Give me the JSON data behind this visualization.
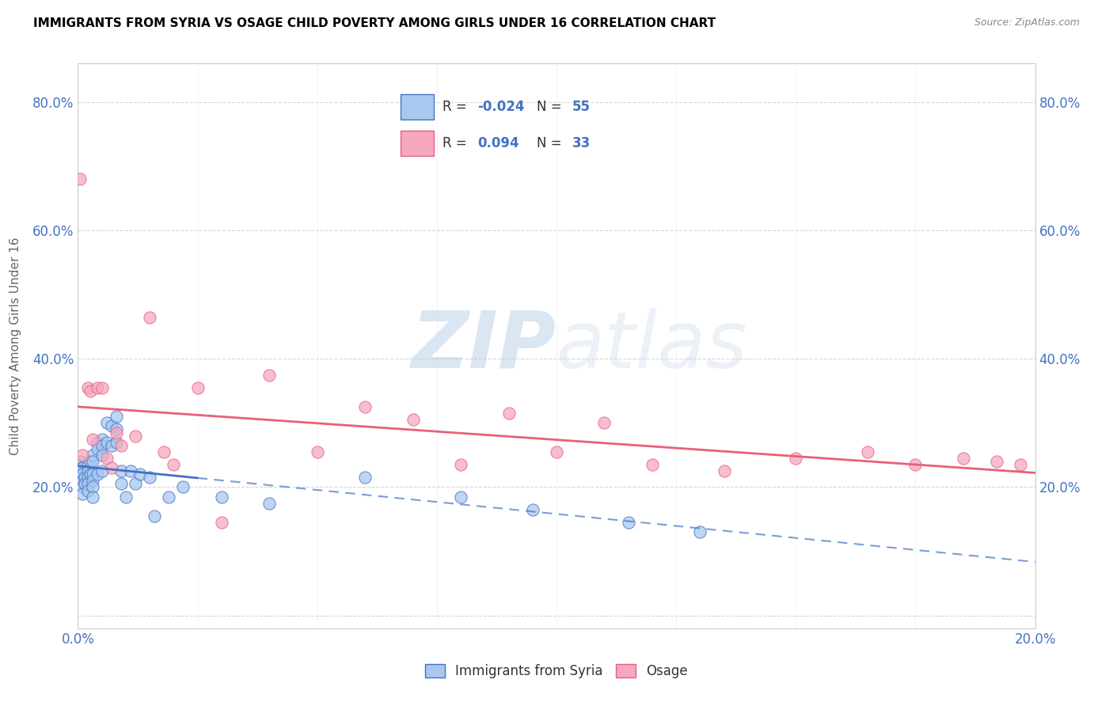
{
  "title": "IMMIGRANTS FROM SYRIA VS OSAGE CHILD POVERTY AMONG GIRLS UNDER 16 CORRELATION CHART",
  "source": "Source: ZipAtlas.com",
  "ylabel": "Child Poverty Among Girls Under 16",
  "xlim": [
    0.0,
    0.2
  ],
  "ylim": [
    -0.02,
    0.86
  ],
  "color_syria": "#a8c8f0",
  "color_osage": "#f5a8c0",
  "trend_syria_color": "#4472c4",
  "trend_osage_color": "#e8607a",
  "watermark_zip": "ZIP",
  "watermark_atlas": "atlas",
  "syria_x": [
    0.0005,
    0.0007,
    0.0008,
    0.0009,
    0.001,
    0.001,
    0.001,
    0.001,
    0.001,
    0.0015,
    0.0015,
    0.002,
    0.002,
    0.002,
    0.002,
    0.002,
    0.0025,
    0.0025,
    0.003,
    0.003,
    0.003,
    0.003,
    0.003,
    0.003,
    0.004,
    0.004,
    0.004,
    0.005,
    0.005,
    0.005,
    0.005,
    0.006,
    0.006,
    0.007,
    0.007,
    0.008,
    0.008,
    0.008,
    0.009,
    0.009,
    0.01,
    0.011,
    0.012,
    0.013,
    0.015,
    0.016,
    0.019,
    0.022,
    0.03,
    0.04,
    0.06,
    0.08,
    0.095,
    0.115,
    0.13
  ],
  "syria_y": [
    0.24,
    0.23,
    0.22,
    0.22,
    0.23,
    0.22,
    0.21,
    0.2,
    0.19,
    0.215,
    0.205,
    0.235,
    0.225,
    0.215,
    0.205,
    0.195,
    0.24,
    0.22,
    0.25,
    0.24,
    0.22,
    0.21,
    0.2,
    0.185,
    0.27,
    0.26,
    0.22,
    0.275,
    0.265,
    0.25,
    0.225,
    0.3,
    0.27,
    0.295,
    0.265,
    0.31,
    0.29,
    0.27,
    0.225,
    0.205,
    0.185,
    0.225,
    0.205,
    0.22,
    0.215,
    0.155,
    0.185,
    0.2,
    0.185,
    0.175,
    0.215,
    0.185,
    0.165,
    0.145,
    0.13
  ],
  "osage_x": [
    0.0005,
    0.001,
    0.002,
    0.0025,
    0.003,
    0.004,
    0.005,
    0.006,
    0.007,
    0.008,
    0.009,
    0.012,
    0.015,
    0.018,
    0.02,
    0.025,
    0.03,
    0.04,
    0.05,
    0.06,
    0.07,
    0.08,
    0.09,
    0.1,
    0.11,
    0.12,
    0.135,
    0.15,
    0.165,
    0.175,
    0.185,
    0.192,
    0.197
  ],
  "osage_y": [
    0.68,
    0.25,
    0.355,
    0.35,
    0.275,
    0.355,
    0.355,
    0.245,
    0.23,
    0.285,
    0.265,
    0.28,
    0.465,
    0.255,
    0.235,
    0.355,
    0.145,
    0.375,
    0.255,
    0.325,
    0.305,
    0.235,
    0.315,
    0.255,
    0.3,
    0.235,
    0.225,
    0.245,
    0.255,
    0.235,
    0.245,
    0.24,
    0.235
  ],
  "trend_syria_solid_end": 0.025,
  "trend_syria_dash_start": 0.025
}
